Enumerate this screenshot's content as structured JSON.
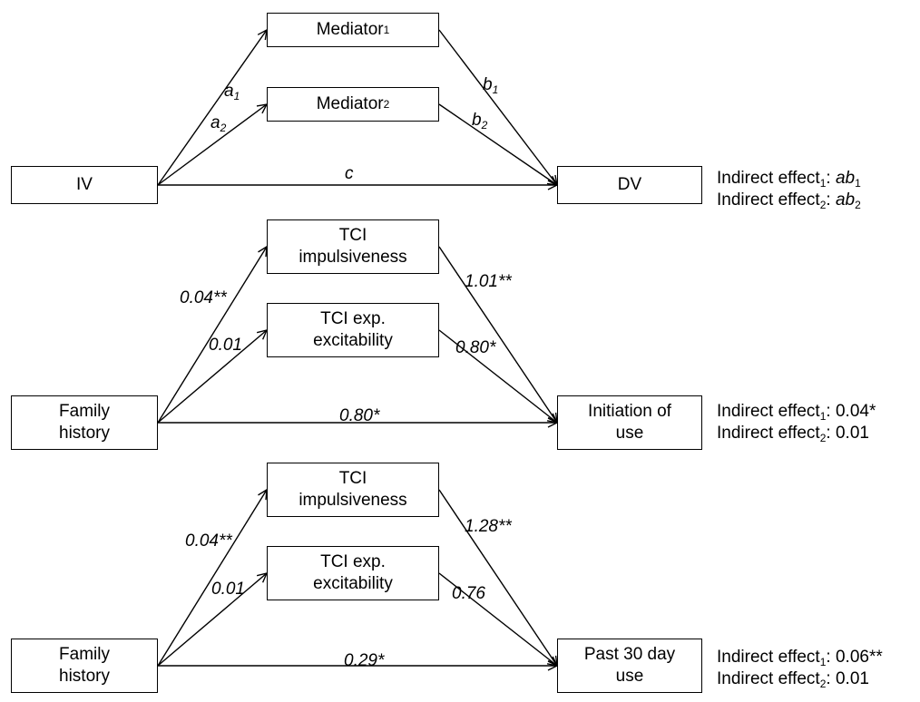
{
  "panels": [
    {
      "boxes": {
        "m1": "Mediator",
        "m2": "Mediator",
        "iv": "IV",
        "dv": "DV"
      },
      "box_subs": {
        "m1": "1",
        "m2": "2"
      },
      "paths": {
        "a1": {
          "text": "a",
          "sub": "1"
        },
        "a2": {
          "text": "a",
          "sub": "2"
        },
        "b1": {
          "text": "b",
          "sub": "1"
        },
        "b2": {
          "text": "b",
          "sub": "2"
        },
        "c": {
          "text": "c",
          "sub": ""
        }
      },
      "results": [
        {
          "label": "Indirect effect",
          "sub": "1",
          "sep": ": ",
          "value": "ab",
          "value_sub": "1"
        },
        {
          "label": "Indirect effect",
          "sub": "2",
          "sep": ": ",
          "value": "ab",
          "value_sub": "2"
        }
      ]
    },
    {
      "boxes": {
        "m1": "TCI\nimpulsiveness",
        "m2": "TCI exp.\nexcitability",
        "iv": "Family\nhistory",
        "dv": "Initiation of\nuse"
      },
      "paths": {
        "a1": {
          "text": "0.04**"
        },
        "a2": {
          "text": "0.01"
        },
        "b1": {
          "text": "1.01**"
        },
        "b2": {
          "text": "0.80*"
        },
        "c": {
          "text": "0.80*"
        }
      },
      "results": [
        {
          "label": "Indirect effect",
          "sub": "1",
          "sep": ": ",
          "value": "0.04*"
        },
        {
          "label": "Indirect effect",
          "sub": "2",
          "sep": ": ",
          "value": "0.01"
        }
      ]
    },
    {
      "boxes": {
        "m1": "TCI\nimpulsiveness",
        "m2": "TCI exp.\nexcitability",
        "iv": "Family\nhistory",
        "dv": "Past 30 day\nuse"
      },
      "paths": {
        "a1": {
          "text": "0.04**"
        },
        "a2": {
          "text": "0.01"
        },
        "b1": {
          "text": "1.28**"
        },
        "b2": {
          "text": "0.76"
        },
        "c": {
          "text": "0.29*"
        }
      },
      "results": [
        {
          "label": "Indirect effect",
          "sub": "1",
          "sep": ": ",
          "value": "0.06**"
        },
        {
          "label": "Indirect effect",
          "sub": "2",
          "sep": ": ",
          "value": "0.01"
        }
      ]
    }
  ]
}
